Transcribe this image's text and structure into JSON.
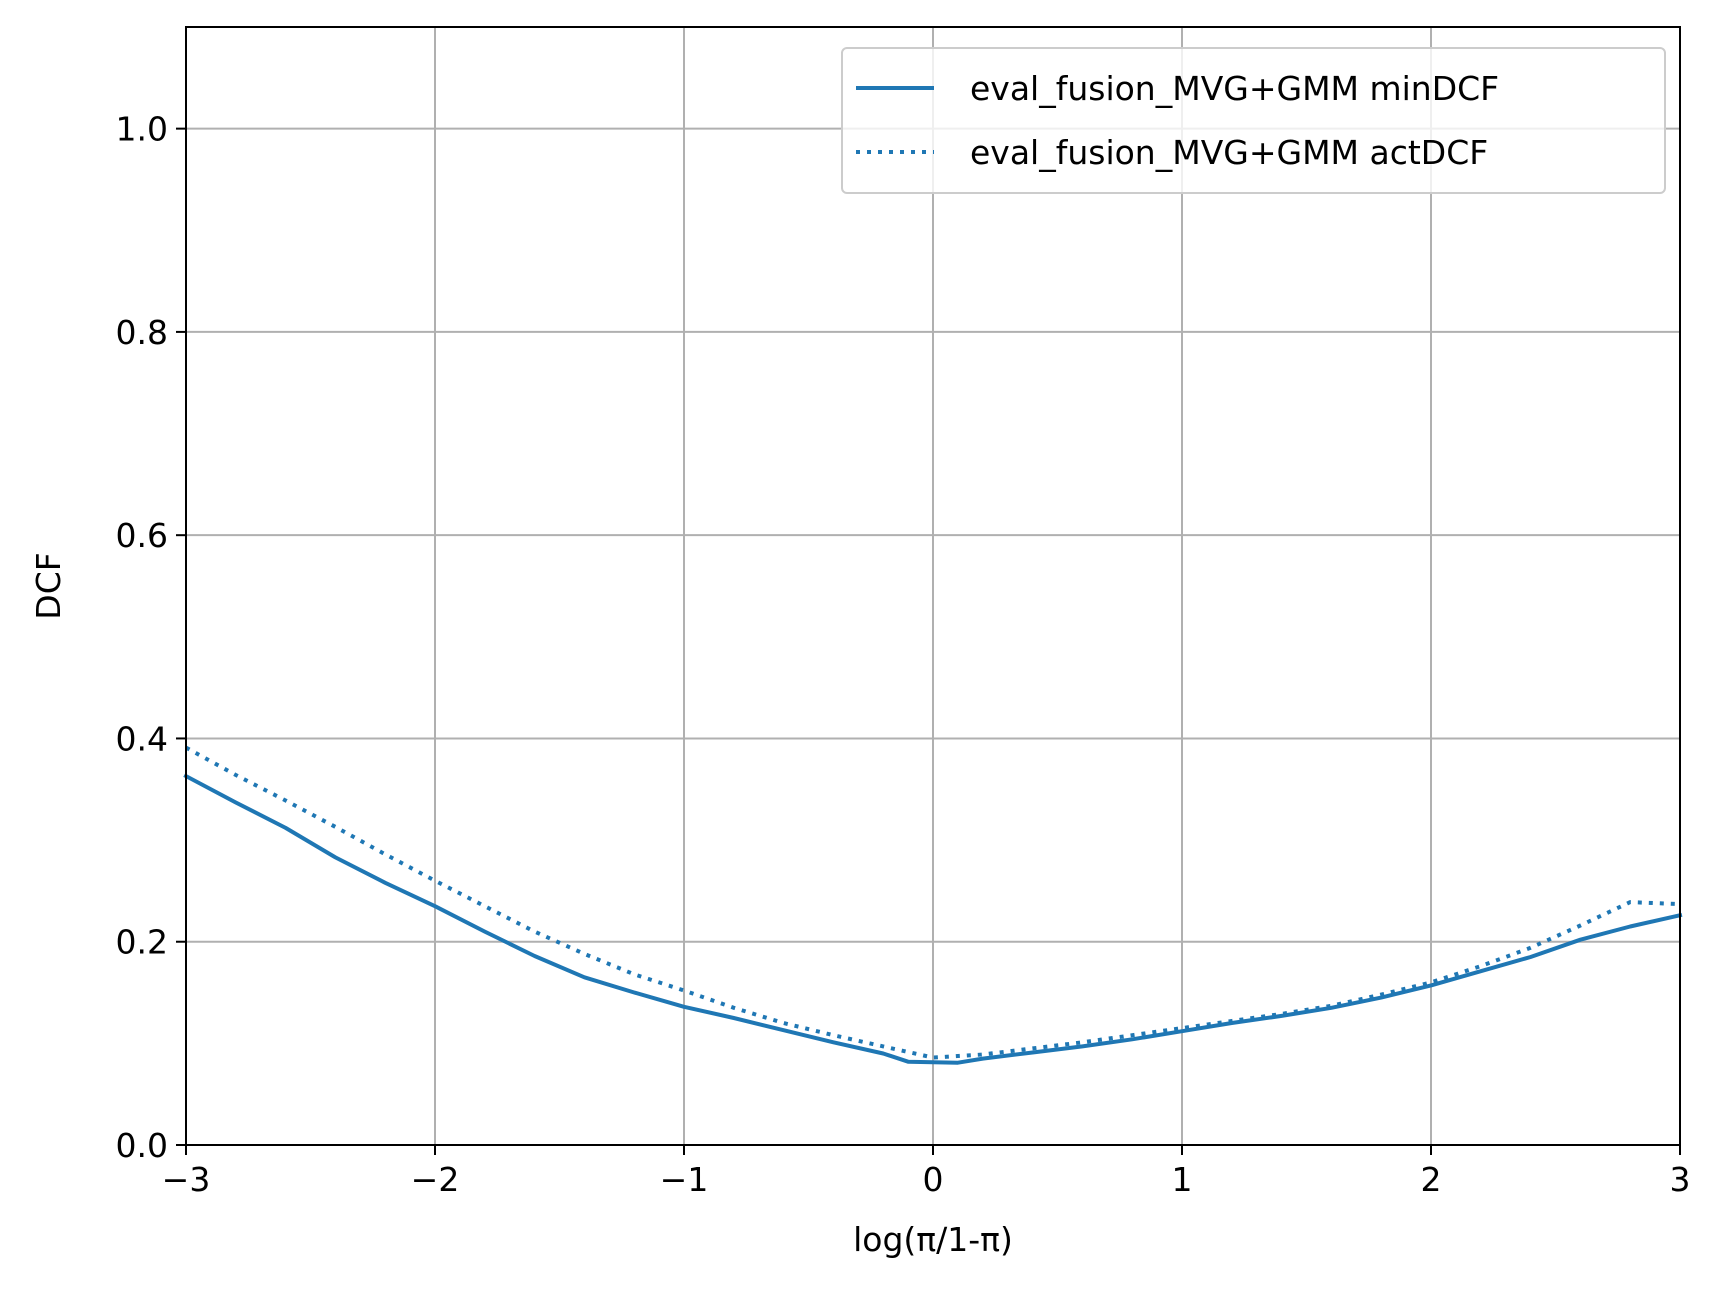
{
  "chart_data": {
    "type": "line",
    "title": "",
    "xlabel": "log(π/1-π)",
    "ylabel": "DCF",
    "xlim": [
      -3,
      3
    ],
    "ylim": [
      0,
      1.1
    ],
    "xticks": [
      -3,
      -2,
      -1,
      0,
      1,
      2,
      3
    ],
    "xtick_labels": [
      "−3",
      "−2",
      "−1",
      "0",
      "1",
      "2",
      "3"
    ],
    "yticks": [
      0,
      0.2,
      0.4,
      0.6,
      0.8,
      1.0
    ],
    "ytick_labels": [
      "0.0",
      "0.2",
      "0.4",
      "0.6",
      "0.8",
      "1.0"
    ],
    "grid": true,
    "legend_position": "top-right",
    "series": [
      {
        "name": "eval_fusion_MVG+GMM minDCF",
        "style": "solid",
        "color": "#1f77b4",
        "x": [
          -3.0,
          -2.8,
          -2.6,
          -2.4,
          -2.2,
          -2.0,
          -1.8,
          -1.6,
          -1.4,
          -1.2,
          -1.0,
          -0.8,
          -0.6,
          -0.4,
          -0.2,
          -0.1,
          0.1,
          0.2,
          0.4,
          0.6,
          0.8,
          1.0,
          1.2,
          1.4,
          1.6,
          1.8,
          2.0,
          2.2,
          2.4,
          2.6,
          2.8,
          3.0
        ],
        "y": [
          0.363,
          0.337,
          0.312,
          0.283,
          0.258,
          0.235,
          0.21,
          0.186,
          0.165,
          0.15,
          0.136,
          0.125,
          0.113,
          0.101,
          0.09,
          0.082,
          0.081,
          0.085,
          0.091,
          0.097,
          0.104,
          0.112,
          0.12,
          0.127,
          0.135,
          0.145,
          0.157,
          0.171,
          0.185,
          0.202,
          0.215,
          0.226
        ]
      },
      {
        "name": "eval_fusion_MVG+GMM actDCF",
        "style": "dotted",
        "color": "#1f77b4",
        "x": [
          -3.0,
          -2.8,
          -2.6,
          -2.4,
          -2.2,
          -2.0,
          -1.8,
          -1.6,
          -1.4,
          -1.2,
          -1.0,
          -0.8,
          -0.6,
          -0.4,
          -0.2,
          0.0,
          0.2,
          0.4,
          0.6,
          0.8,
          1.0,
          1.2,
          1.4,
          1.6,
          1.8,
          2.0,
          2.2,
          2.4,
          2.6,
          2.8,
          3.0
        ],
        "y": [
          0.391,
          0.364,
          0.339,
          0.313,
          0.286,
          0.26,
          0.235,
          0.21,
          0.188,
          0.168,
          0.152,
          0.135,
          0.12,
          0.108,
          0.097,
          0.086,
          0.089,
          0.095,
          0.101,
          0.108,
          0.115,
          0.122,
          0.129,
          0.137,
          0.148,
          0.16,
          0.176,
          0.194,
          0.216,
          0.239,
          0.237
        ]
      }
    ]
  }
}
